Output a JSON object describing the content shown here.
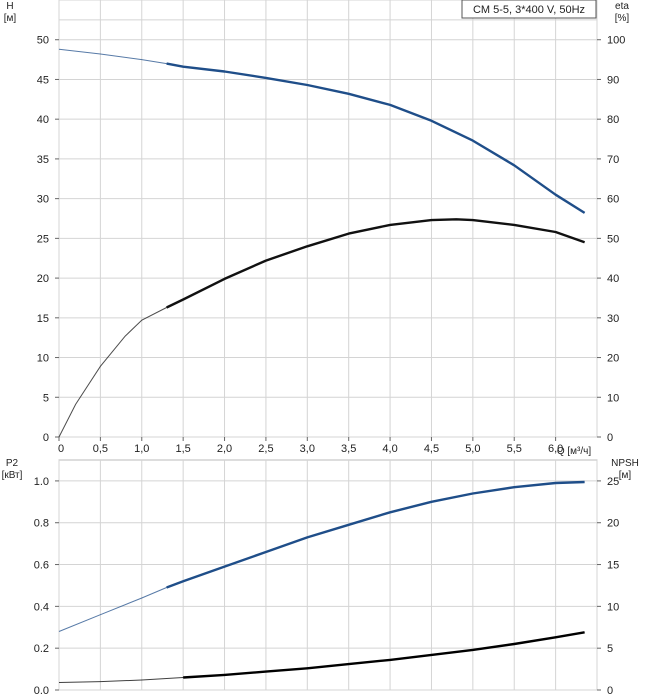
{
  "chart_data": [
    {
      "type": "line",
      "title": "CM 5-5, 3*400 V, 50Hz",
      "xlabel": "Q [м³/ч]",
      "xlim": [
        0,
        6.5
      ],
      "xticks": [
        "0",
        "0,5",
        "1,0",
        "1,5",
        "2,0",
        "2,5",
        "3,0",
        "3,5",
        "4,0",
        "4,5",
        "5,0",
        "5,5",
        "6,0"
      ],
      "y_left": {
        "label_top": "H",
        "label_unit": "[м]",
        "ylim": [
          0,
          55
        ],
        "ticks": [
          "0",
          "5",
          "10",
          "15",
          "20",
          "25",
          "30",
          "35",
          "40",
          "45",
          "50"
        ]
      },
      "y_right": {
        "label_top": "eta",
        "label_unit": "[%]",
        "ylim": [
          0,
          110
        ],
        "ticks": [
          "0",
          "10",
          "20",
          "30",
          "40",
          "50",
          "60",
          "70",
          "80",
          "90",
          "100"
        ]
      },
      "grid": true,
      "series": [
        {
          "axis": "left",
          "color": "#1f4e89",
          "x": [
            0,
            0.5,
            1.0,
            1.3,
            1.5,
            2.0,
            2.5,
            3.0,
            3.5,
            4.0,
            4.5,
            5.0,
            5.5,
            6.0,
            6.35
          ],
          "y": [
            48.8,
            48.2,
            47.5,
            47.0,
            46.6,
            46.0,
            45.2,
            44.3,
            43.2,
            41.8,
            39.8,
            37.3,
            34.2,
            30.5,
            28.2
          ]
        },
        {
          "axis": "right",
          "color": "#111111",
          "x": [
            0,
            0.2,
            0.5,
            0.8,
            1.0,
            1.3,
            1.5,
            2.0,
            2.5,
            3.0,
            3.5,
            4.0,
            4.5,
            4.8,
            5.0,
            5.5,
            6.0,
            6.35
          ],
          "y": [
            0,
            8.2,
            17.8,
            25.4,
            29.4,
            32.6,
            34.6,
            39.8,
            44.4,
            48.0,
            51.2,
            53.4,
            54.6,
            54.8,
            54.6,
            53.4,
            51.6,
            49.0
          ]
        }
      ]
    },
    {
      "type": "line",
      "xlim": [
        0,
        6.5
      ],
      "y_left": {
        "label_top": "P2",
        "label_unit": "[кВт]",
        "ylim": [
          0,
          1.1
        ],
        "ticks": [
          "0.0",
          "0.2",
          "0.4",
          "0.6",
          "0.8",
          "1.0"
        ]
      },
      "y_right": {
        "label_top": "NPSH",
        "label_unit": "[м]",
        "ylim": [
          0,
          27.5
        ],
        "ticks": [
          "0",
          "5",
          "10",
          "15",
          "20",
          "25"
        ]
      },
      "grid": true,
      "series": [
        {
          "axis": "left",
          "color": "#1f4e89",
          "x": [
            0,
            0.5,
            1.0,
            1.3,
            1.5,
            2.0,
            2.5,
            3.0,
            3.5,
            4.0,
            4.5,
            5.0,
            5.5,
            6.0,
            6.35
          ],
          "y": [
            0.28,
            0.36,
            0.44,
            0.49,
            0.52,
            0.59,
            0.66,
            0.73,
            0.79,
            0.85,
            0.9,
            0.94,
            0.97,
            0.99,
            0.995
          ]
        },
        {
          "axis": "right",
          "color": "#000000",
          "x": [
            0,
            0.5,
            1.0,
            1.5,
            2.0,
            2.5,
            3.0,
            3.5,
            4.0,
            4.5,
            5.0,
            5.5,
            6.0,
            6.35
          ],
          "y": [
            0.9,
            1.0,
            1.2,
            1.5,
            1.8,
            2.2,
            2.6,
            3.1,
            3.6,
            4.2,
            4.8,
            5.5,
            6.3,
            6.9
          ]
        }
      ]
    }
  ]
}
